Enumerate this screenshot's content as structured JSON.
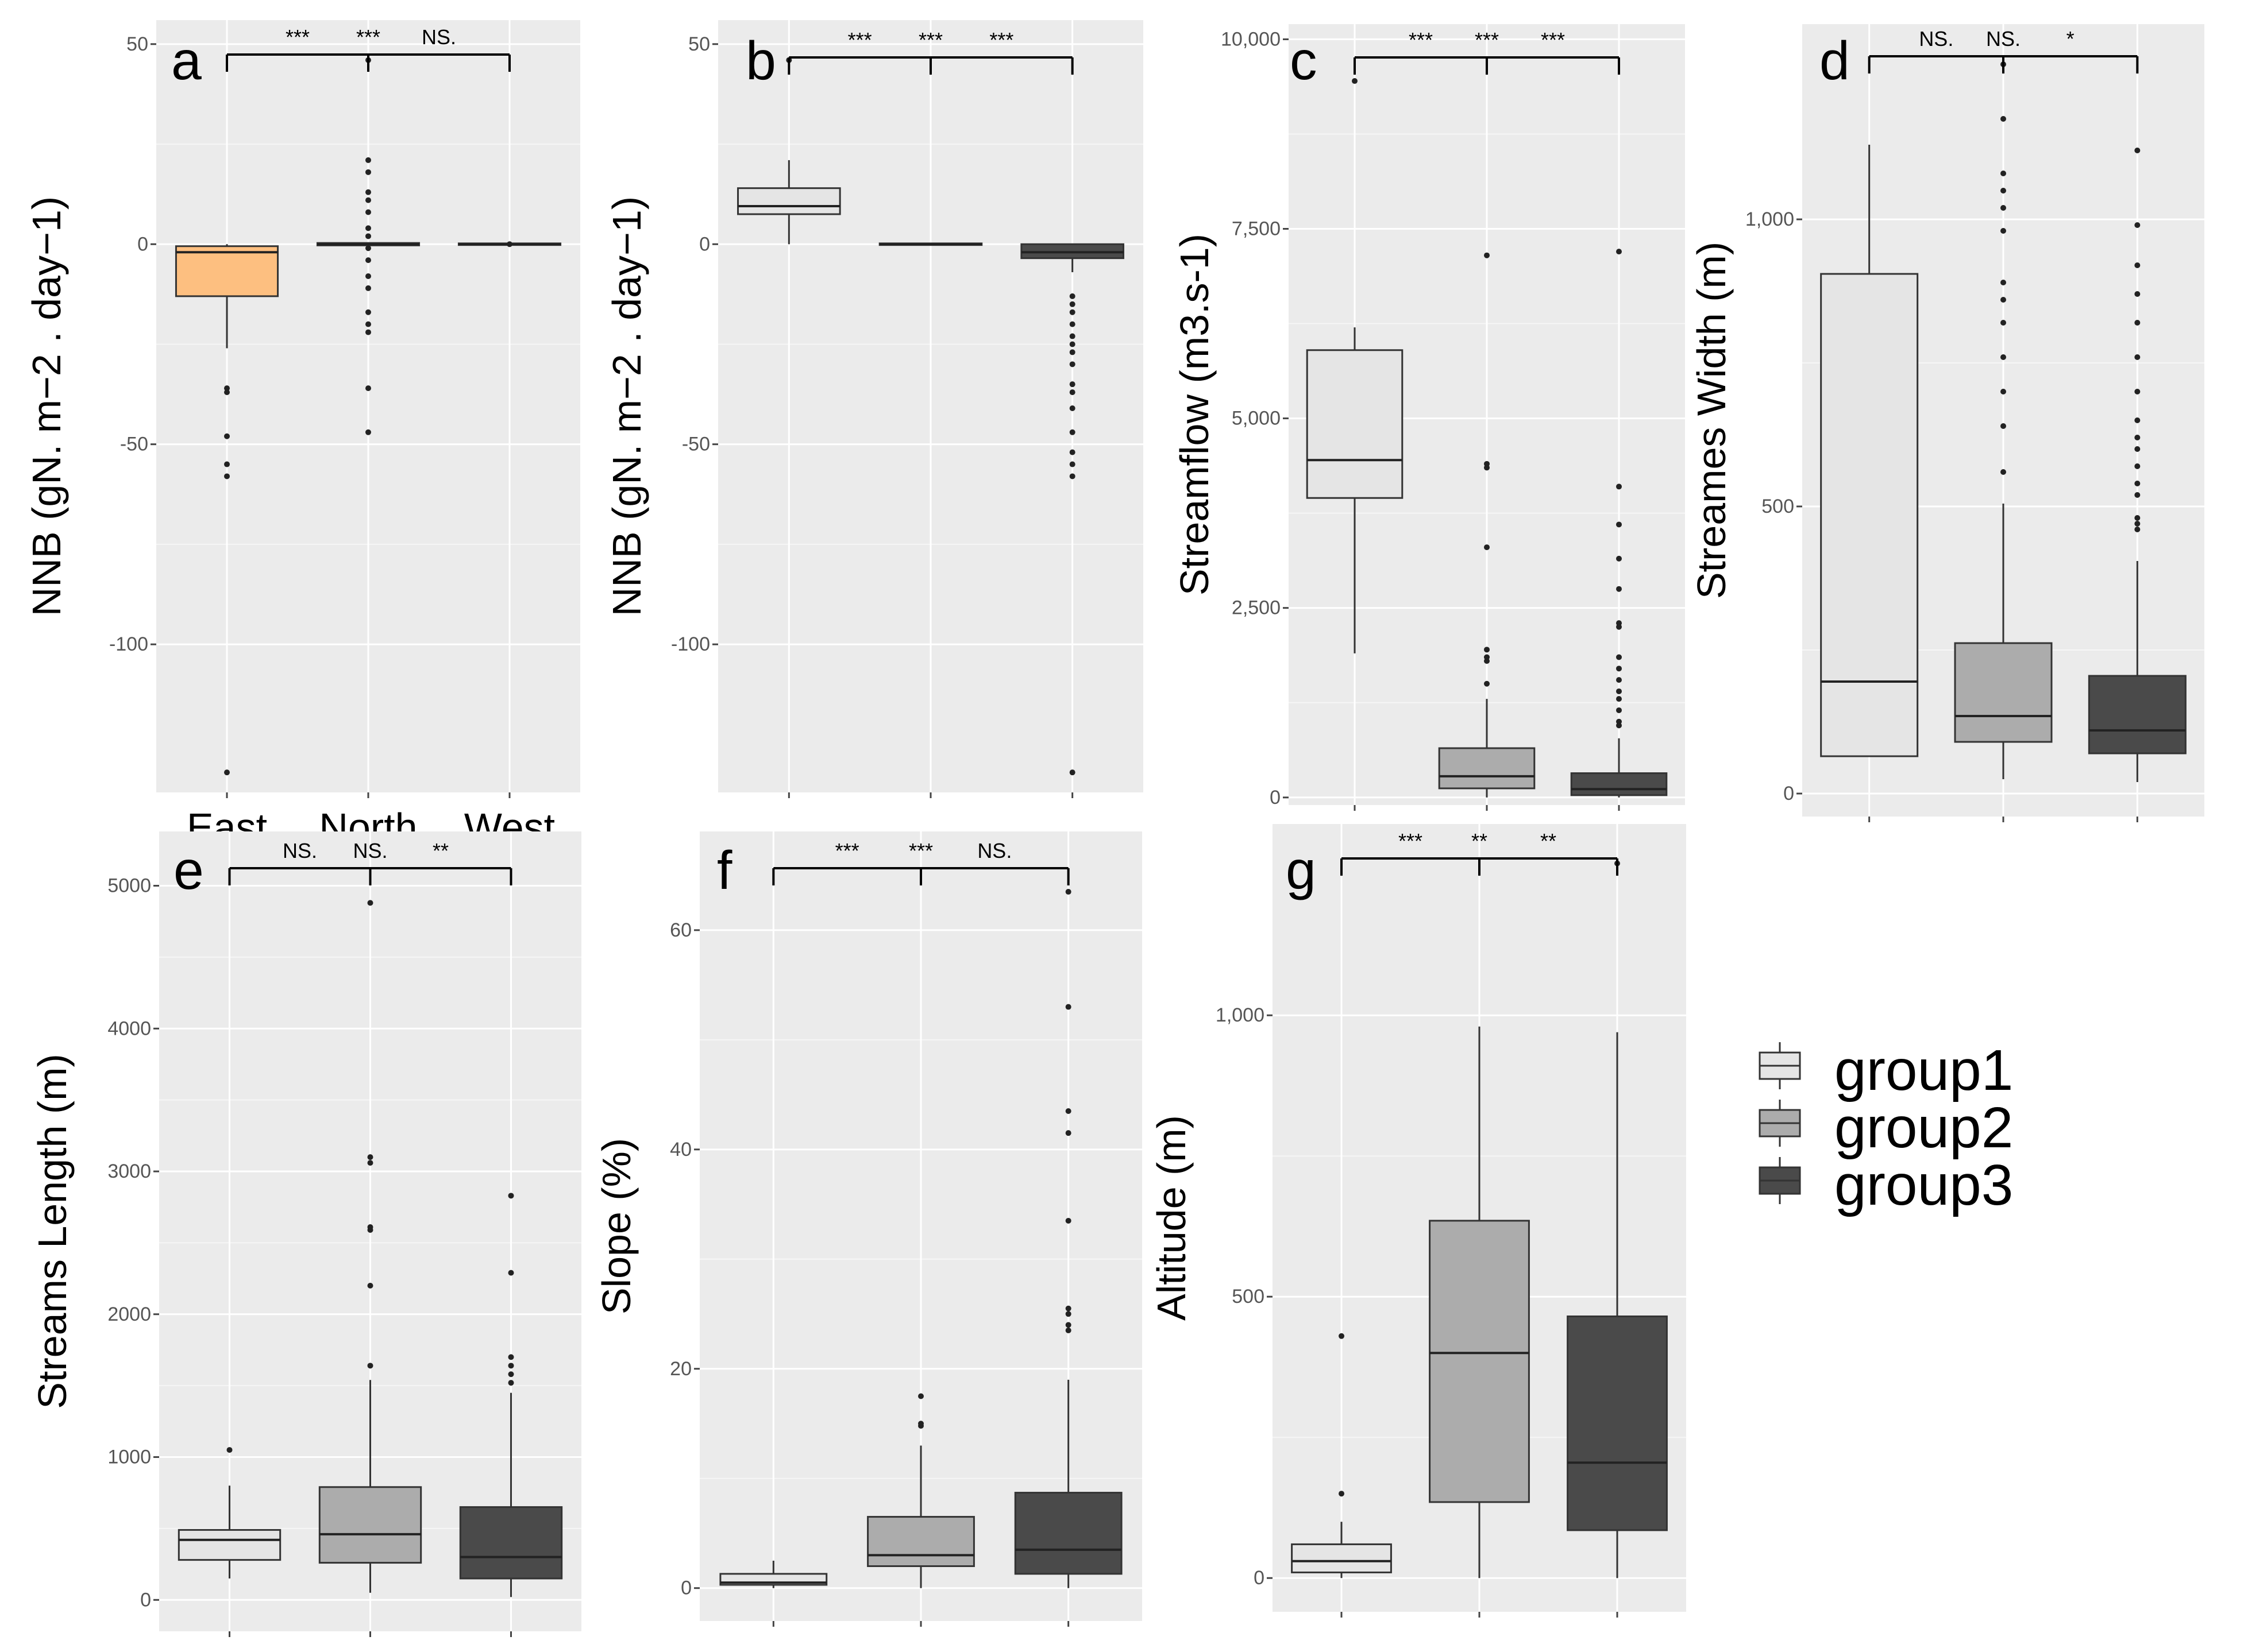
{
  "figure": {
    "background": "#ffffff",
    "panel_background": "#ebebeb",
    "gridline_color": "#ffffff"
  },
  "legend": {
    "entries": [
      {
        "label": "group1",
        "fill": "#e5e5e5"
      },
      {
        "label": "group2",
        "fill": "#acacac"
      },
      {
        "label": "group3",
        "fill": "#4a4a4a"
      }
    ]
  },
  "chart_data": [
    {
      "type": "boxplot",
      "panel_label": "a",
      "ylabel": "NNB (gN. m−2 . day−1)",
      "ylim": [
        -137,
        56
      ],
      "yticks": [
        50,
        0,
        -50,
        -100
      ],
      "ytick_labels": [
        "50",
        "0",
        "-50",
        "-100"
      ],
      "categories": [
        "East",
        "North",
        "West"
      ],
      "boxes": [
        {
          "fill": "#fdbf80",
          "q1": -13,
          "median": -2,
          "q3": -0.5,
          "whisker_low": -26,
          "whisker_high": 0,
          "outliers": [
            -36,
            -37,
            -48,
            -55,
            -58,
            -132
          ]
        },
        {
          "fill": "#8b3a3a",
          "q1": -0.3,
          "median": 0,
          "q3": 0.3,
          "whisker_low": -0.3,
          "whisker_high": 0.3,
          "outliers": [
            46,
            21,
            18,
            13,
            11,
            8,
            4,
            2,
            -1,
            -4,
            -8,
            -11,
            -17,
            -20,
            -22,
            -36,
            -47
          ]
        },
        {
          "fill": "#e5e5e5",
          "q1": -0.2,
          "median": 0,
          "q3": 0.2,
          "whisker_low": -0.2,
          "whisker_high": 0.2,
          "outliers": [
            0
          ]
        }
      ],
      "significance": [
        "***",
        "***",
        "NS."
      ]
    },
    {
      "type": "boxplot",
      "panel_label": "b",
      "ylabel": "NNB (gN. m−2 . day−1)",
      "ylim": [
        -137,
        56
      ],
      "yticks": [
        50,
        0,
        -50,
        -100
      ],
      "ytick_labels": [
        "50",
        "0",
        "-50",
        "-100"
      ],
      "categories": [
        "group1",
        "group2",
        "group3"
      ],
      "boxes": [
        {
          "fill": "#e5e5e5",
          "q1": 7.5,
          "median": 9.5,
          "q3": 14,
          "whisker_low": 0,
          "whisker_high": 21,
          "outliers": [
            46
          ]
        },
        {
          "fill": "#acacac",
          "q1": -0.2,
          "median": 0,
          "q3": 0.2,
          "whisker_low": -0.2,
          "whisker_high": 0.2,
          "outliers": []
        },
        {
          "fill": "#4a4a4a",
          "q1": -3.5,
          "median": -2,
          "q3": 0,
          "whisker_low": -7,
          "whisker_high": 0,
          "outliers": [
            -13,
            -15,
            -17,
            -20,
            -23,
            -25,
            -27,
            -30,
            -35,
            -37,
            -41,
            -47,
            -52,
            -55,
            -58,
            -132
          ]
        }
      ],
      "significance": [
        "***",
        "***",
        "***"
      ]
    },
    {
      "type": "boxplot",
      "panel_label": "c",
      "ylabel": "Streamflow (m3.s-1)",
      "ylim": [
        -100,
        10200
      ],
      "yticks": [
        0,
        2500,
        5000,
        7500,
        10000
      ],
      "ytick_labels": [
        "0",
        "2,500",
        "5,000",
        "7,500",
        "10,000"
      ],
      "categories": [
        "group1",
        "group2",
        "group3"
      ],
      "boxes": [
        {
          "fill": "#e5e5e5",
          "q1": 3950,
          "median": 4450,
          "q3": 5900,
          "whisker_low": 1900,
          "whisker_high": 6200,
          "outliers": [
            9450
          ]
        },
        {
          "fill": "#acacac",
          "q1": 120,
          "median": 280,
          "q3": 650,
          "whisker_low": 0,
          "whisker_high": 1300,
          "outliers": [
            7150,
            4400,
            4350,
            3300,
            1950,
            1850,
            1800,
            1500
          ]
        },
        {
          "fill": "#4a4a4a",
          "q1": 30,
          "median": 110,
          "q3": 320,
          "whisker_low": 0,
          "whisker_high": 780,
          "outliers": [
            7200,
            4100,
            3600,
            3150,
            2750,
            2300,
            2250,
            1850,
            1700,
            1550,
            1400,
            1300,
            1150,
            1000,
            950
          ]
        }
      ],
      "significance": [
        "***",
        "***",
        "***"
      ]
    },
    {
      "type": "boxplot",
      "panel_label": "d",
      "ylabel": "Streames Width (m)",
      "ylim": [
        -40,
        1340
      ],
      "yticks": [
        0,
        500,
        1000
      ],
      "ytick_labels": [
        "0",
        "500",
        "1,000"
      ],
      "categories": [
        "group1",
        "group2",
        "group3"
      ],
      "boxes": [
        {
          "fill": "#e5e5e5",
          "q1": 65,
          "median": 195,
          "q3": 905,
          "whisker_low": 65,
          "whisker_high": 1130,
          "outliers": []
        },
        {
          "fill": "#acacac",
          "q1": 90,
          "median": 135,
          "q3": 262,
          "whisker_low": 25,
          "whisker_high": 505,
          "outliers": [
            1270,
            1175,
            1080,
            1050,
            1020,
            980,
            890,
            860,
            820,
            760,
            700,
            640,
            560
          ]
        },
        {
          "fill": "#4a4a4a",
          "q1": 70,
          "median": 110,
          "q3": 205,
          "whisker_low": 20,
          "whisker_high": 405,
          "outliers": [
            1120,
            990,
            920,
            870,
            820,
            760,
            700,
            650,
            620,
            600,
            570,
            540,
            520,
            480,
            470,
            460
          ]
        }
      ],
      "significance": [
        "NS.",
        "NS.",
        "*"
      ]
    },
    {
      "type": "boxplot",
      "panel_label": "e",
      "ylabel": "Streams Length (m)",
      "ylim": [
        -220,
        5380
      ],
      "yticks": [
        0,
        1000,
        2000,
        3000,
        4000,
        5000
      ],
      "ytick_labels": [
        "0",
        "1000",
        "2000",
        "3000",
        "4000",
        "5000"
      ],
      "categories": [
        "group1",
        "group2",
        "group3"
      ],
      "boxes": [
        {
          "fill": "#e5e5e5",
          "q1": 280,
          "median": 420,
          "q3": 490,
          "whisker_low": 150,
          "whisker_high": 800,
          "outliers": [
            1050
          ]
        },
        {
          "fill": "#acacac",
          "q1": 260,
          "median": 460,
          "q3": 790,
          "whisker_low": 50,
          "whisker_high": 1540,
          "outliers": [
            4880,
            3100,
            3060,
            2610,
            2590,
            2200,
            1640
          ]
        },
        {
          "fill": "#4a4a4a",
          "q1": 150,
          "median": 300,
          "q3": 650,
          "whisker_low": 20,
          "whisker_high": 1450,
          "outliers": [
            2830,
            2290,
            1700,
            1640,
            1580,
            1520
          ]
        }
      ],
      "significance": [
        "NS.",
        "NS.",
        "**"
      ]
    },
    {
      "type": "boxplot",
      "panel_label": "f",
      "ylabel": "Slope (%)",
      "ylim": [
        -3,
        69
      ],
      "yticks": [
        0,
        20,
        40,
        60
      ],
      "ytick_labels": [
        "0",
        "20",
        "40",
        "60"
      ],
      "categories": [
        "group1",
        "group2",
        "group3"
      ],
      "boxes": [
        {
          "fill": "#e5e5e5",
          "q1": 0.3,
          "median": 0.5,
          "q3": 1.3,
          "whisker_low": 0,
          "whisker_high": 2.5,
          "outliers": []
        },
        {
          "fill": "#acacac",
          "q1": 2,
          "median": 3,
          "q3": 6.5,
          "whisker_low": 0,
          "whisker_high": 13,
          "outliers": [
            17.5,
            15,
            14.8
          ]
        },
        {
          "fill": "#4a4a4a",
          "q1": 1.3,
          "median": 3.5,
          "q3": 8.7,
          "whisker_low": 0,
          "whisker_high": 19,
          "outliers": [
            63.5,
            53,
            43.5,
            41.5,
            33.5,
            25.5,
            25,
            24,
            23.5
          ]
        }
      ],
      "significance": [
        "***",
        "***",
        "NS."
      ]
    },
    {
      "type": "boxplot",
      "panel_label": "g",
      "ylabel": "Altitude (m)",
      "ylim": [
        -60,
        1340
      ],
      "yticks": [
        0,
        500,
        1000
      ],
      "ytick_labels": [
        "0",
        "500",
        "1,000"
      ],
      "categories": [
        "group1",
        "group2",
        "group3"
      ],
      "boxes": [
        {
          "fill": "#e5e5e5",
          "q1": 10,
          "median": 30,
          "q3": 60,
          "whisker_low": 0,
          "whisker_high": 100,
          "outliers": [
            430,
            150
          ]
        },
        {
          "fill": "#acacac",
          "q1": 135,
          "median": 400,
          "q3": 635,
          "whisker_low": 0,
          "whisker_high": 980,
          "outliers": []
        },
        {
          "fill": "#4a4a4a",
          "q1": 85,
          "median": 205,
          "q3": 465,
          "whisker_low": 0,
          "whisker_high": 970,
          "outliers": [
            1270
          ]
        }
      ],
      "significance": [
        "***",
        "**",
        "**"
      ]
    }
  ]
}
